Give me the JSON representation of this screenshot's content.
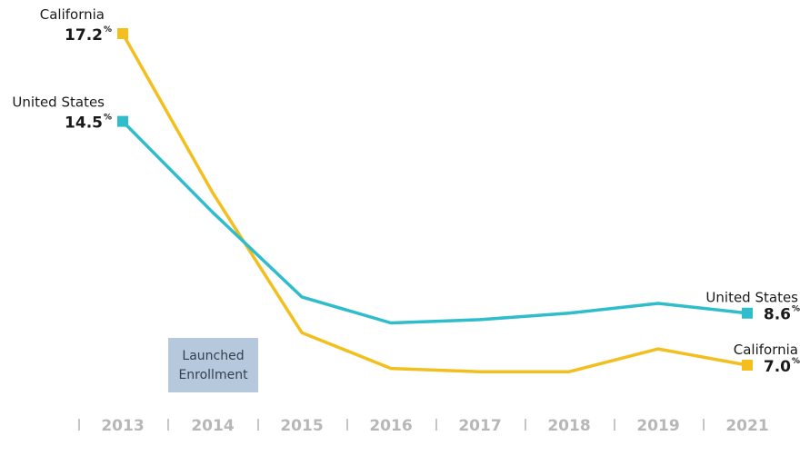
{
  "chart_data": {
    "type": "line",
    "x": [
      "2013",
      "2014",
      "2015",
      "2016",
      "2017",
      "2018",
      "2019",
      "2021"
    ],
    "series": [
      {
        "name": "California",
        "color": "#f2bf1e",
        "values": [
          17.2,
          12.3,
          8.0,
          6.9,
          6.8,
          6.8,
          7.5,
          7.0
        ],
        "start_label": {
          "name": "California",
          "value": "17.2",
          "unit": "%"
        },
        "end_label": {
          "name": "California",
          "value": "7.0",
          "unit": "%"
        }
      },
      {
        "name": "United States",
        "color": "#2fbccb",
        "values": [
          14.5,
          11.7,
          9.1,
          8.3,
          8.4,
          8.6,
          8.9,
          8.6
        ],
        "start_label": {
          "name": "United States",
          "value": "14.5",
          "unit": "%"
        },
        "end_label": {
          "name": "United States",
          "value": "8.6",
          "unit": "%"
        }
      }
    ],
    "annotation": {
      "text_line1": "Launched",
      "text_line2": "Enrollment",
      "between": [
        "2014",
        "2015"
      ],
      "color": "#b5c8dc"
    },
    "ylim": [
      0,
      18
    ],
    "grid": false,
    "legend": "none"
  }
}
